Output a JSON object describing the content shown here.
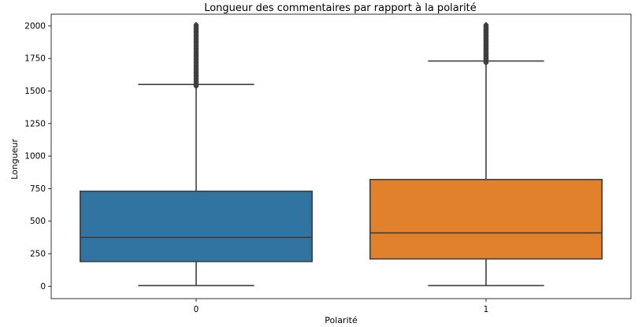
{
  "chart_data": {
    "type": "box",
    "title": "Longueur des commentaires par rapport à la polarité",
    "xlabel": "Polarité",
    "ylabel": "Longueur",
    "categories": [
      "0",
      "1"
    ],
    "ylim": [
      -95,
      2090
    ],
    "yticks": [
      0,
      250,
      500,
      750,
      1000,
      1250,
      1500,
      1750,
      2000
    ],
    "grid": false,
    "boxes": [
      {
        "category": "0",
        "whisker_low": 5,
        "q1": 190,
        "median": 375,
        "q3": 730,
        "whisker_high": 1550,
        "outliers_range": [
          1535,
          2010
        ],
        "color": "#3274a1"
      },
      {
        "category": "1",
        "whisker_low": 5,
        "q1": 210,
        "median": 410,
        "q3": 820,
        "whisker_high": 1730,
        "outliers_range": [
          1715,
          2010
        ],
        "color": "#e1812c"
      }
    ]
  }
}
